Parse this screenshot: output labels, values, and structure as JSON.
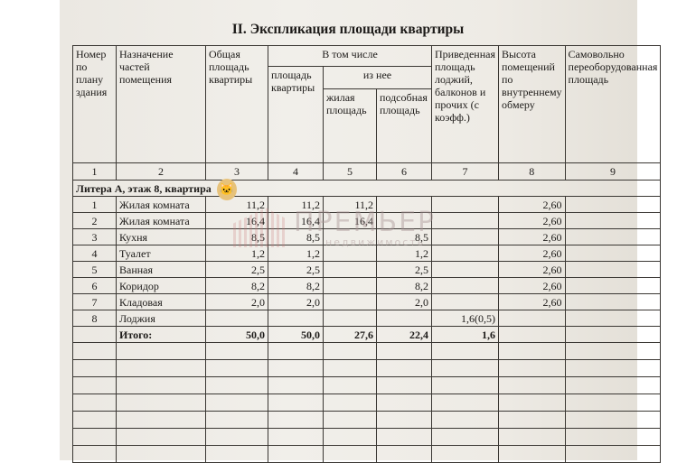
{
  "title": "II. Экспликация площади квартиры",
  "headers": {
    "c1": "Номер по плану здания",
    "c2": "Назначение частей помещения",
    "c3": "Общая площадь квартиры",
    "group": "В том числе",
    "c4": "площадь квартиры",
    "subgroup": "из нее",
    "c5": "жилая площадь",
    "c6": "подсобная площадь",
    "c7": "Приведенная площадь лоджий, балконов и прочих (с коэфф.)",
    "c8": "Высота помещений по внутреннему обмеру",
    "c9": "Самовольно переоборудованная площадь"
  },
  "column_numbers": [
    "1",
    "2",
    "3",
    "4",
    "5",
    "6",
    "7",
    "8",
    "9"
  ],
  "section": "Литера А, этаж 8, квартира",
  "rows": [
    [
      "1",
      "Жилая комната",
      "11,2",
      "11,2",
      "11,2",
      "",
      "",
      "2,60",
      ""
    ],
    [
      "2",
      "Жилая комната",
      "16,4",
      "16,4",
      "16,4",
      "",
      "",
      "2,60",
      ""
    ],
    [
      "3",
      "Кухня",
      "8,5",
      "8,5",
      "",
      "8,5",
      "",
      "2,60",
      ""
    ],
    [
      "4",
      "Туалет",
      "1,2",
      "1,2",
      "",
      "1,2",
      "",
      "2,60",
      ""
    ],
    [
      "5",
      "Ванная",
      "2,5",
      "2,5",
      "",
      "2,5",
      "",
      "2,60",
      ""
    ],
    [
      "6",
      "Коридор",
      "8,2",
      "8,2",
      "",
      "8,2",
      "",
      "2,60",
      ""
    ],
    [
      "7",
      "Кладовая",
      "2,0",
      "2,0",
      "",
      "2,0",
      "",
      "2,60",
      ""
    ],
    [
      "8",
      "Лоджия",
      "",
      "",
      "",
      "",
      "1,6(0,5)",
      "",
      ""
    ]
  ],
  "total": {
    "label": "Итого:",
    "values": [
      "50,0",
      "50,0",
      "27,6",
      "22,4",
      "1,6",
      "",
      ""
    ]
  },
  "watermark": {
    "brand": "ПРЕМЬЕР",
    "sub": "недвижимость"
  }
}
